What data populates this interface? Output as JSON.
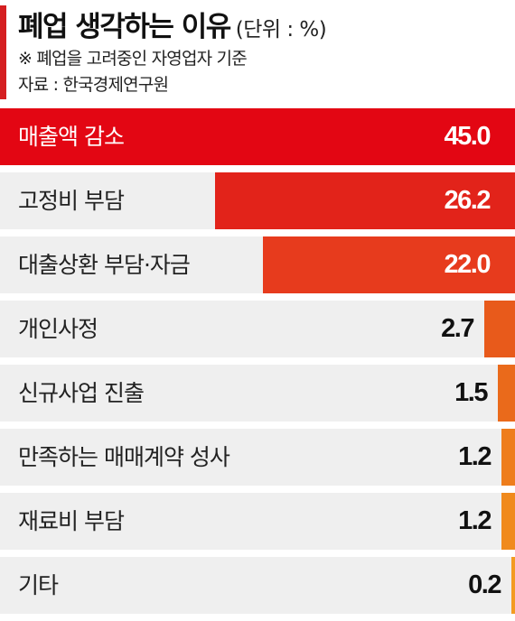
{
  "header": {
    "title": "폐업 생각하는 이유",
    "unit": "(단위 : %)",
    "note": "※ 폐업을 고려중인 자영업자 기준",
    "source": "자료 : 한국경제연구원"
  },
  "chart_data": {
    "type": "bar",
    "orientation": "horizontal",
    "title": "폐업 생각하는 이유",
    "unit": "%",
    "categories": [
      "매출액 감소",
      "고정비 부담",
      "대출상환 부담·자금",
      "개인사정",
      "신규사업 진출",
      "만족하는 매매계약 성사",
      "재료비 부담",
      "기타"
    ],
    "values": [
      45.0,
      26.2,
      22.0,
      2.7,
      1.5,
      1.2,
      1.2,
      0.2
    ],
    "value_labels": [
      "45.0",
      "26.2",
      "22.0",
      "2.7",
      "1.5",
      "1.2",
      "1.2",
      "0.2"
    ],
    "bar_colors": [
      "#e30613",
      "#e2231a",
      "#e73b1d",
      "#e85a1b",
      "#ea6a1b",
      "#ee7d1c",
      "#f08a1d",
      "#f39b22"
    ],
    "bar_direction": "right-to-left"
  }
}
